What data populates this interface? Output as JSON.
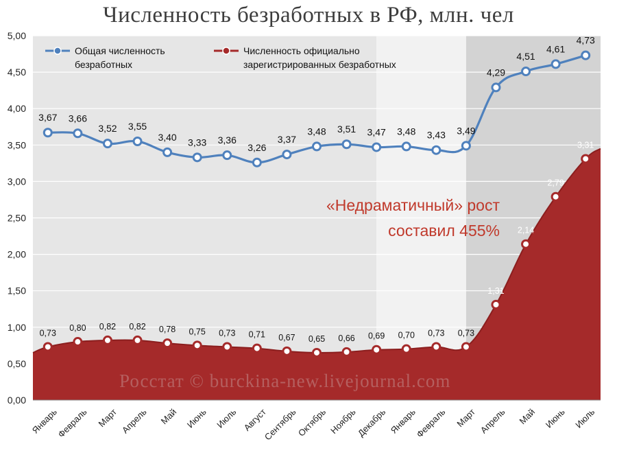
{
  "chart_data": {
    "type": "line",
    "title": "Численность безработных в РФ, млн. чел",
    "ylim": [
      0,
      5
    ],
    "yticks": [
      "0,00",
      "0,50",
      "1,00",
      "1,50",
      "2,00",
      "2,50",
      "3,00",
      "3,50",
      "4,00",
      "4,50",
      "5,00"
    ],
    "categories": [
      "Январь",
      "Февраль",
      "Март",
      "Апрель",
      "Май",
      "Июнь",
      "Июль",
      "Август",
      "Сентябрь",
      "Октябрь",
      "Ноябрь",
      "Декабрь",
      "Январь",
      "Февраль",
      "Март",
      "Апрель",
      "Май",
      "Июнь",
      "Июль"
    ],
    "series": [
      {
        "name": "Общая численность безработных",
        "name_lines": [
          "Общая численность",
          "безработных"
        ],
        "color": "#4f81bd",
        "values": [
          3.67,
          3.66,
          3.52,
          3.55,
          3.4,
          3.33,
          3.36,
          3.26,
          3.37,
          3.48,
          3.51,
          3.47,
          3.48,
          3.43,
          3.49,
          4.29,
          4.51,
          4.61,
          4.73
        ],
        "labels": [
          "3,67",
          "3,66",
          "3,52",
          "3,55",
          "3,40",
          "3,33",
          "3,36",
          "3,26",
          "3,37",
          "3,48",
          "3,51",
          "3,47",
          "3,48",
          "3,43",
          "3,49",
          "4,29",
          "4,51",
          "4,61",
          "4,73"
        ]
      },
      {
        "name": "Численность официально зарегистрированных безработных",
        "name_lines": [
          "Численность официально",
          "зарегистрированных безработных"
        ],
        "color": "#a52a2a",
        "area": true,
        "values": [
          0.73,
          0.8,
          0.82,
          0.82,
          0.78,
          0.75,
          0.73,
          0.71,
          0.67,
          0.65,
          0.66,
          0.69,
          0.7,
          0.73,
          0.73,
          1.31,
          2.14,
          2.79,
          3.31
        ],
        "labels": [
          "0,73",
          "0,80",
          "0,82",
          "0,82",
          "0,78",
          "0,75",
          "0,73",
          "0,71",
          "0,67",
          "0,65",
          "0,66",
          "0,69",
          "0,70",
          "0,73",
          "0,73",
          "1,31",
          "2,14",
          "2,79",
          "3,31"
        ]
      }
    ],
    "annotation": [
      "«Недраматичный» рост",
      "составил 455%"
    ],
    "watermark": "Росстат © burckina-new.livejournal.com",
    "legend_position": "top-left",
    "grid": true
  }
}
